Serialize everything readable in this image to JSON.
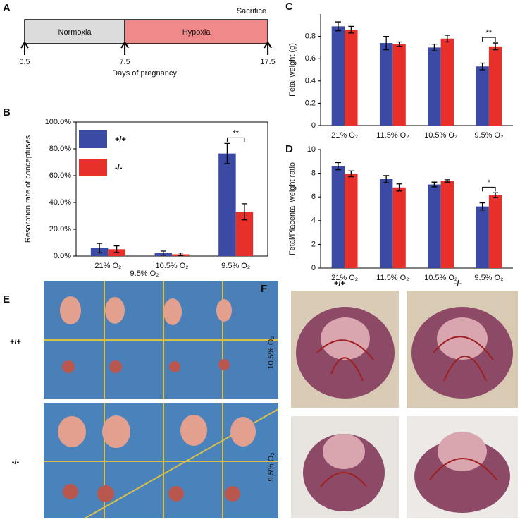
{
  "timeline": {
    "panel_label": "A",
    "sacrifice_label": "Sacrifice",
    "phases": [
      "Normoxia",
      "Hypoxia"
    ],
    "ticks": [
      0.5,
      7.5,
      17.5
    ],
    "axis_label": "Days of pregnancy"
  },
  "chart_data": [
    {
      "type": "bar",
      "panel_label": "B",
      "y_label": "Resorption rate of conceptuses",
      "categories": [
        "21% O₂",
        "10.5% O₂",
        "9.5% O₂"
      ],
      "series": [
        {
          "name": "+/+",
          "color": "#3b4ba5",
          "values": [
            5.9,
            2.2,
            76.5
          ],
          "errors": [
            3.5,
            1.5,
            7.5
          ]
        },
        {
          "name": "-/-",
          "color": "#e8302a",
          "values": [
            5.1,
            1.3,
            33
          ],
          "errors": [
            2.5,
            1,
            6
          ]
        }
      ],
      "ylim": [
        0,
        100
      ],
      "yticks": [
        {
          "value": 0,
          "label": "0.0%"
        },
        {
          "value": 20,
          "label": "20.0%"
        },
        {
          "value": 40,
          "label": "40.0%"
        },
        {
          "value": 60,
          "label": "60.0%"
        },
        {
          "value": 80,
          "label": "80.0%"
        },
        {
          "value": 100,
          "label": "100.0%"
        }
      ],
      "legend": "upper left",
      "annotation": "**"
    },
    {
      "type": "bar",
      "panel_label": "C",
      "y_label": "Fetal weight (g)",
      "categories": [
        "21% O₂",
        "11.5% O₂",
        "10.5% O₂",
        "9.5% O₂"
      ],
      "series": [
        {
          "color": "#3b4ba5",
          "values": [
            0.89,
            0.74,
            0.7,
            0.53
          ],
          "errors": [
            0.04,
            0.06,
            0.03,
            0.03
          ]
        },
        {
          "color": "#e8302a",
          "values": [
            0.86,
            0.73,
            0.78,
            0.71
          ],
          "errors": [
            0.03,
            0.02,
            0.03,
            0.03
          ]
        }
      ],
      "ylim": [
        0,
        1
      ],
      "yticks": [
        0,
        0.2,
        0.4,
        0.6,
        0.8
      ],
      "annotation": "**"
    },
    {
      "type": "bar",
      "panel_label": "D",
      "y_label": "Fetal/Placental weight ratio",
      "categories": [
        "21% O₂",
        "11.5% O₂",
        "10.5% O₂",
        "9.5% O₂"
      ],
      "series": [
        {
          "color": "#3b4ba5",
          "values": [
            8.6,
            7.5,
            7.05,
            5.2
          ],
          "errors": [
            0.3,
            0.3,
            0.2,
            0.3
          ]
        },
        {
          "color": "#e8302a",
          "values": [
            7.95,
            6.8,
            7.35,
            6.15
          ],
          "errors": [
            0.25,
            0.3,
            0.1,
            0.2
          ]
        }
      ],
      "ylim": [
        0,
        10
      ],
      "yticks": [
        0,
        2,
        4,
        6,
        8,
        10
      ],
      "annotation": "*"
    }
  ],
  "photos": {
    "e_label": "E",
    "e_title": "9.5% O₂",
    "e_rows": [
      "+/+",
      "-/-"
    ],
    "f_label": "F",
    "f_cols": [
      "+/+",
      "-/-"
    ],
    "f_rows": [
      "10.5% O₂",
      "9.5% O₂"
    ]
  }
}
